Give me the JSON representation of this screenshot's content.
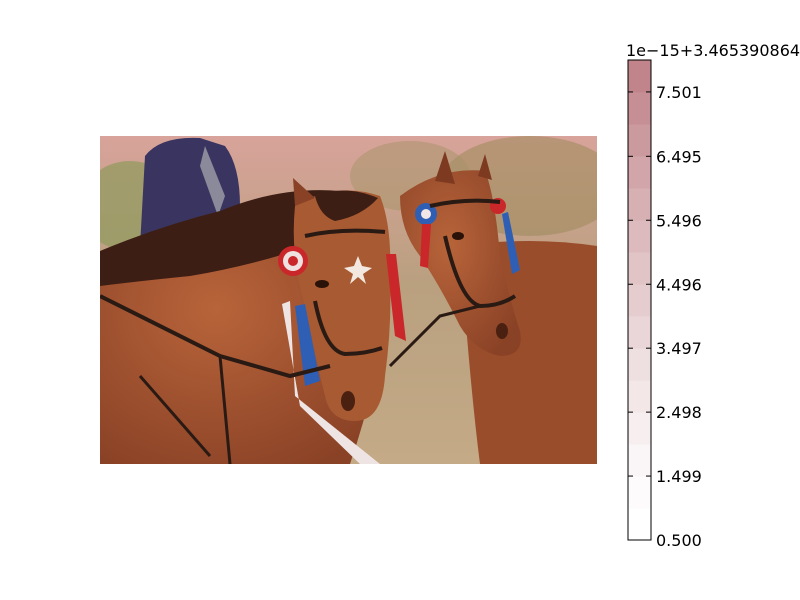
{
  "chart_data": {
    "type": "heatmap",
    "title": "",
    "colorbar": {
      "offset_text": "1e−15+3.465390864",
      "tick_labels": [
        "0.500",
        "1.499",
        "2.498",
        "3.497",
        "4.496",
        "5.496",
        "6.495",
        "7.501"
      ],
      "tick_values": [
        0.5,
        1.499,
        2.498,
        3.497,
        4.496,
        5.496,
        6.495,
        7.501
      ],
      "range": [
        0.5,
        8.0
      ],
      "levels": 15,
      "colormap": "Reds",
      "alpha": 0.5
    },
    "image": {
      "subject": "photo",
      "overlay_color": "#e58a8a"
    }
  },
  "colors": {
    "sky": "#d9a59a",
    "grass": "#b7a27a",
    "horse_main": "#a1542f",
    "horse_dark": "#5e2a18",
    "mane": "#3d1e14",
    "jacket": "#3a3560",
    "ribbon_red": "#c9272a",
    "ribbon_blue": "#2f5fb5",
    "colorbar_top": "#c0848a",
    "colorbar_bottom": "#ffffff"
  }
}
